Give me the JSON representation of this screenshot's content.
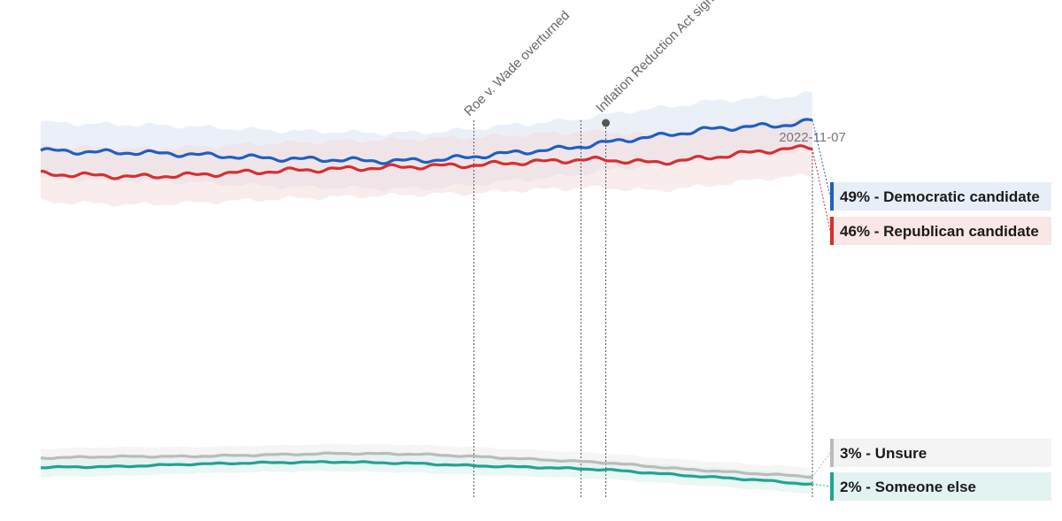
{
  "chart_data": {
    "type": "line",
    "x_start": "2022-01-01",
    "x_end": "2022-11-07",
    "ylim": [
      0,
      60
    ],
    "grid": false,
    "legend_placement": "right",
    "end_date_label": "2022-11-07",
    "annotations": [
      {
        "date": "2022-06-24",
        "label": "Roe v. Wade overturned",
        "marker": false
      },
      {
        "date": "2022-08-06",
        "label": "",
        "marker": false
      },
      {
        "date": "2022-08-16",
        "label": "Inflation Reduction Act signed",
        "marker": true
      }
    ],
    "series": [
      {
        "name": "Democratic candidate",
        "legend_label": "49% - Democratic candidate",
        "color": "#1f5fbf",
        "band_color": "#dbe3f3",
        "legend_bg": "#e7eef8",
        "x": [
          "2022-01-01",
          "2022-01-20",
          "2022-02-10",
          "2022-03-01",
          "2022-03-20",
          "2022-04-10",
          "2022-05-01",
          "2022-05-20",
          "2022-06-10",
          "2022-06-24",
          "2022-07-10",
          "2022-07-25",
          "2022-08-06",
          "2022-08-16",
          "2022-08-25",
          "2022-09-05",
          "2022-09-15",
          "2022-09-25",
          "2022-10-05",
          "2022-10-15",
          "2022-10-25",
          "2022-11-07"
        ],
        "values": [
          45.2,
          45.0,
          44.9,
          44.7,
          44.4,
          44.1,
          44.0,
          43.8,
          44.0,
          44.4,
          44.9,
          45.3,
          45.7,
          46.2,
          46.6,
          47.0,
          47.4,
          47.9,
          48.1,
          48.3,
          48.4,
          49.0
        ]
      },
      {
        "name": "Republican candidate",
        "legend_label": "46% - Republican candidate",
        "color": "#d62f2f",
        "band_color": "#f3dcdc",
        "legend_bg": "#f9e6e6",
        "x": [
          "2022-01-01",
          "2022-01-20",
          "2022-02-10",
          "2022-03-01",
          "2022-03-20",
          "2022-04-10",
          "2022-05-01",
          "2022-05-20",
          "2022-06-10",
          "2022-06-24",
          "2022-07-10",
          "2022-07-25",
          "2022-08-06",
          "2022-08-16",
          "2022-08-25",
          "2022-09-05",
          "2022-09-15",
          "2022-09-25",
          "2022-10-05",
          "2022-10-15",
          "2022-10-25",
          "2022-11-07"
        ],
        "values": [
          42.2,
          42.0,
          41.8,
          42.0,
          42.3,
          42.6,
          42.8,
          43.0,
          43.2,
          43.3,
          43.6,
          43.8,
          44.0,
          44.0,
          43.8,
          43.6,
          43.9,
          44.2,
          44.6,
          45.0,
          45.3,
          45.6
        ]
      },
      {
        "name": "Unsure",
        "legend_label": "3% - Unsure",
        "color": "#bbbbbb",
        "band_color": "#ececec",
        "legend_bg": "#f3f3f3",
        "x": [
          "2022-01-01",
          "2022-02-01",
          "2022-03-01",
          "2022-04-01",
          "2022-05-01",
          "2022-06-01",
          "2022-06-24",
          "2022-07-20",
          "2022-08-16",
          "2022-09-15",
          "2022-10-15",
          "2022-11-07"
        ],
        "values": [
          5.6,
          5.8,
          5.8,
          6.0,
          6.2,
          6.1,
          5.8,
          5.4,
          5.0,
          4.2,
          3.6,
          3.2
        ]
      },
      {
        "name": "Someone else",
        "legend_label": "2% - Someone else",
        "color": "#22a294",
        "band_color": "#dbf0ec",
        "legend_bg": "#e3f3f1",
        "x": [
          "2022-01-01",
          "2022-02-01",
          "2022-03-01",
          "2022-04-01",
          "2022-05-01",
          "2022-06-01",
          "2022-06-24",
          "2022-07-20",
          "2022-08-16",
          "2022-09-15",
          "2022-10-15",
          "2022-11-07"
        ],
        "values": [
          4.4,
          4.5,
          4.8,
          5.0,
          5.1,
          4.9,
          4.6,
          4.4,
          4.1,
          3.4,
          2.8,
          2.2
        ]
      }
    ]
  }
}
